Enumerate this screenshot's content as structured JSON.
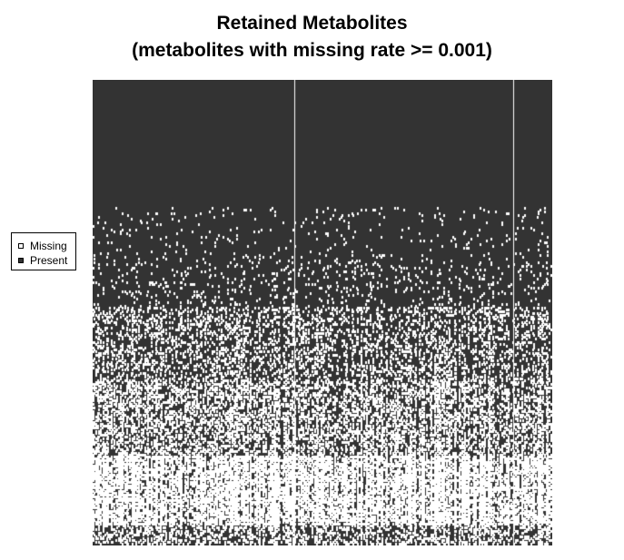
{
  "chart_data": {
    "type": "heatmap",
    "title": "Retained Metabolites",
    "subtitle": "(metabolites with missing rate >= 0.001)",
    "xlabel": "",
    "ylabel": "",
    "legend": {
      "placement": "left",
      "entries": [
        {
          "label": "Missing",
          "color": "#ffffff"
        },
        {
          "label": "Present",
          "color": "#333333"
        }
      ]
    },
    "colors": {
      "present": "#333333",
      "missing": "#ffffff"
    },
    "grid": false,
    "n_columns": 300,
    "n_rows": 256,
    "band_missing_rates": [
      {
        "rows": [
          0,
          70
        ],
        "missing_rate": 0.0
      },
      {
        "rows": [
          70,
          100
        ],
        "missing_rate": 0.03
      },
      {
        "rows": [
          100,
          125
        ],
        "missing_rate": 0.07
      },
      {
        "rows": [
          125,
          165
        ],
        "missing_rate": 0.25
      },
      {
        "rows": [
          165,
          207
        ],
        "missing_rate": 0.4
      },
      {
        "rows": [
          207,
          245
        ],
        "missing_rate": 0.7
      },
      {
        "rows": [
          245,
          256
        ],
        "missing_rate": 0.35
      }
    ],
    "fully_missing_columns": [
      132,
      275
    ]
  }
}
